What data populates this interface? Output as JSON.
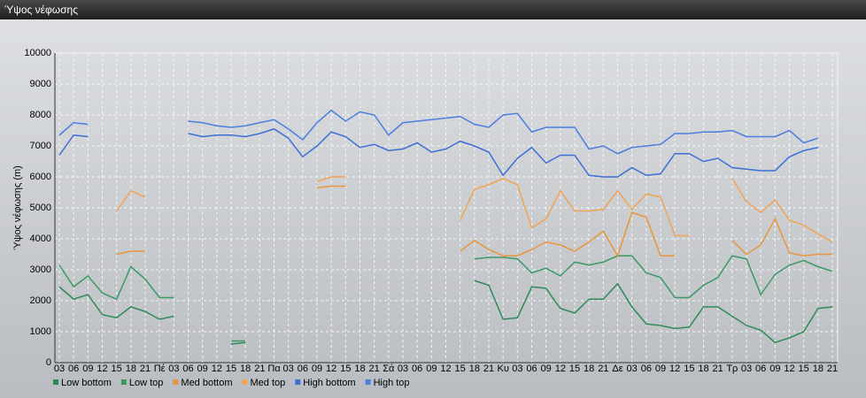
{
  "chart_data": {
    "type": "line",
    "title": "Ύψος νέφωσης",
    "y_label": "Ύψος νέφωσης (m)",
    "categories": [
      "03",
      "06",
      "09",
      "12",
      "15",
      "18",
      "21",
      "Πέ",
      "03",
      "06",
      "09",
      "12",
      "15",
      "18",
      "21",
      "Πα",
      "03",
      "06",
      "09",
      "12",
      "15",
      "18",
      "21",
      "Σά",
      "03",
      "06",
      "09",
      "12",
      "15",
      "18",
      "21",
      "Κυ",
      "03",
      "06",
      "09",
      "12",
      "15",
      "18",
      "21",
      "Δε",
      "03",
      "06",
      "09",
      "12",
      "15",
      "18",
      "21",
      "Τρ",
      "03",
      "06",
      "09",
      "12",
      "15",
      "18",
      "21"
    ],
    "ylim": [
      0,
      10000
    ],
    "yticks": [
      0,
      1000,
      2000,
      3000,
      4000,
      5000,
      6000,
      7000,
      8000,
      9000,
      10000
    ],
    "grid": true,
    "series": [
      {
        "name": "Low bottom",
        "color": "#2e8b57",
        "values": [
          2450,
          2050,
          2200,
          1550,
          1450,
          1800,
          1650,
          1400,
          1500,
          null,
          null,
          null,
          600,
          650,
          null,
          null,
          null,
          null,
          null,
          null,
          null,
          null,
          null,
          null,
          null,
          null,
          null,
          null,
          null,
          2650,
          2500,
          1400,
          1450,
          2450,
          2400,
          1750,
          1600,
          2050,
          2050,
          2550,
          1800,
          1250,
          1200,
          1100,
          1150,
          1800,
          1800,
          1500,
          1200,
          1050,
          650,
          800,
          1000,
          1750,
          1800
        ]
      },
      {
        "name": "Low top",
        "color": "#3a9a66",
        "values": [
          3150,
          2450,
          2800,
          2250,
          2050,
          3100,
          2700,
          2100,
          2100,
          null,
          null,
          null,
          700,
          700,
          null,
          null,
          null,
          null,
          null,
          null,
          null,
          null,
          null,
          null,
          null,
          null,
          null,
          null,
          null,
          3350,
          3400,
          3400,
          3350,
          2900,
          3050,
          2800,
          3250,
          3150,
          3250,
          3450,
          3450,
          2900,
          2750,
          2100,
          2100,
          2500,
          2750,
          3450,
          3350,
          2200,
          2850,
          3150,
          3300,
          3100,
          2950
        ]
      },
      {
        "name": "Med bottom",
        "color": "#e8963c",
        "values": [
          null,
          null,
          null,
          null,
          3500,
          3600,
          3600,
          null,
          null,
          null,
          null,
          null,
          null,
          null,
          null,
          null,
          null,
          null,
          5650,
          5700,
          5700,
          null,
          null,
          null,
          null,
          null,
          null,
          null,
          3600,
          3950,
          3650,
          3450,
          3450,
          3650,
          3900,
          3800,
          3600,
          3900,
          4250,
          3450,
          4850,
          4700,
          3450,
          3450,
          null,
          null,
          null,
          3950,
          3500,
          3800,
          4650,
          3550,
          3450,
          3500,
          3500
        ]
      },
      {
        "name": "Med top",
        "color": "#f0a455",
        "values": [
          null,
          null,
          null,
          null,
          4900,
          5550,
          5350,
          null,
          null,
          null,
          null,
          null,
          null,
          null,
          null,
          null,
          null,
          null,
          5850,
          6000,
          6000,
          null,
          null,
          null,
          null,
          null,
          null,
          null,
          4600,
          5600,
          5750,
          5950,
          5750,
          4350,
          4650,
          5550,
          4900,
          4900,
          4950,
          5550,
          4950,
          5450,
          5350,
          4100,
          4100,
          null,
          null,
          5950,
          5200,
          4850,
          5250,
          4600,
          4450,
          4150,
          3900
        ]
      },
      {
        "name": "High bottom",
        "color": "#3b6fd6",
        "values": [
          6700,
          7350,
          7300,
          null,
          null,
          null,
          null,
          null,
          null,
          7400,
          7300,
          7350,
          7350,
          7300,
          7400,
          7550,
          7250,
          6650,
          7000,
          7450,
          7300,
          6950,
          7050,
          6850,
          6900,
          7100,
          6800,
          6900,
          7150,
          7000,
          6800,
          6050,
          6600,
          6950,
          6450,
          6700,
          6700,
          6050,
          6000,
          6000,
          6300,
          6050,
          6100,
          6750,
          6750,
          6500,
          6600,
          6300,
          6250,
          6200,
          6200,
          6650,
          6850,
          6950,
          null
        ]
      },
      {
        "name": "High top",
        "color": "#4a7ee0",
        "values": [
          7350,
          7750,
          7700,
          null,
          null,
          null,
          null,
          null,
          null,
          7800,
          7750,
          7650,
          7600,
          7650,
          7750,
          7850,
          7550,
          7200,
          7750,
          8150,
          7800,
          8100,
          8000,
          7350,
          7750,
          7800,
          7850,
          7900,
          7950,
          7700,
          7600,
          8000,
          8050,
          7450,
          7600,
          7600,
          7600,
          6900,
          7000,
          6750,
          6950,
          7000,
          7050,
          7400,
          7400,
          7450,
          7450,
          7500,
          7300,
          7300,
          7300,
          7500,
          7100,
          7250,
          null
        ]
      }
    ]
  }
}
